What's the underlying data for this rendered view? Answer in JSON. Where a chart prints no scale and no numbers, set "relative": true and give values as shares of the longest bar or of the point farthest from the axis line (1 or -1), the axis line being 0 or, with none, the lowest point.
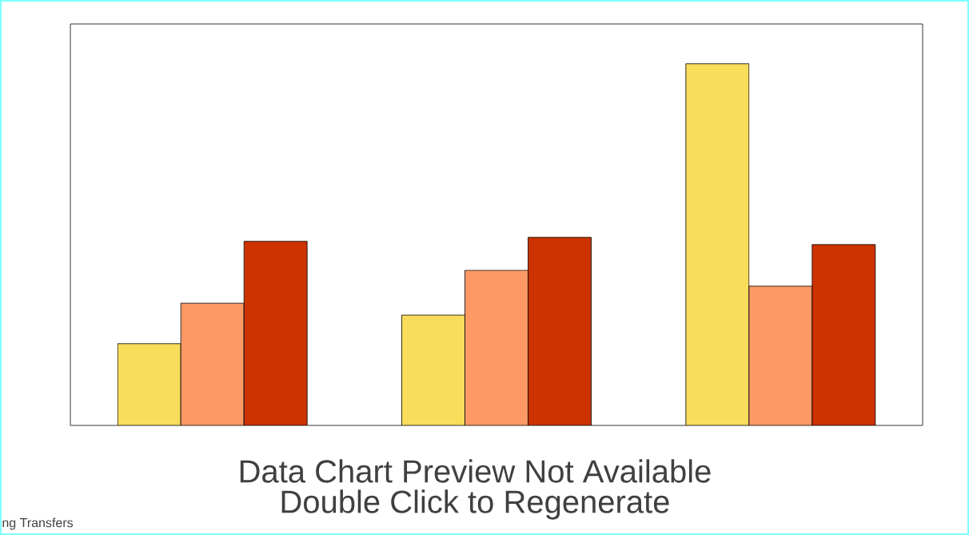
{
  "chart_data": {
    "type": "bar",
    "relative": true,
    "categories": [
      null,
      null,
      null
    ],
    "series": [
      {
        "color": "#f8dc5a",
        "values": [
          0.226,
          0.305,
          1
        ]
      },
      {
        "color": "#fe9966",
        "values": [
          0.338,
          0.429,
          0.385
        ]
      },
      {
        "color": "#cc3300",
        "values": [
          0.509,
          0.52,
          0.5
        ]
      }
    ],
    "annotations": [
      "Data Chart Preview Not Available",
      "Double Click to Regenerate",
      "ng Transfers"
    ]
  }
}
